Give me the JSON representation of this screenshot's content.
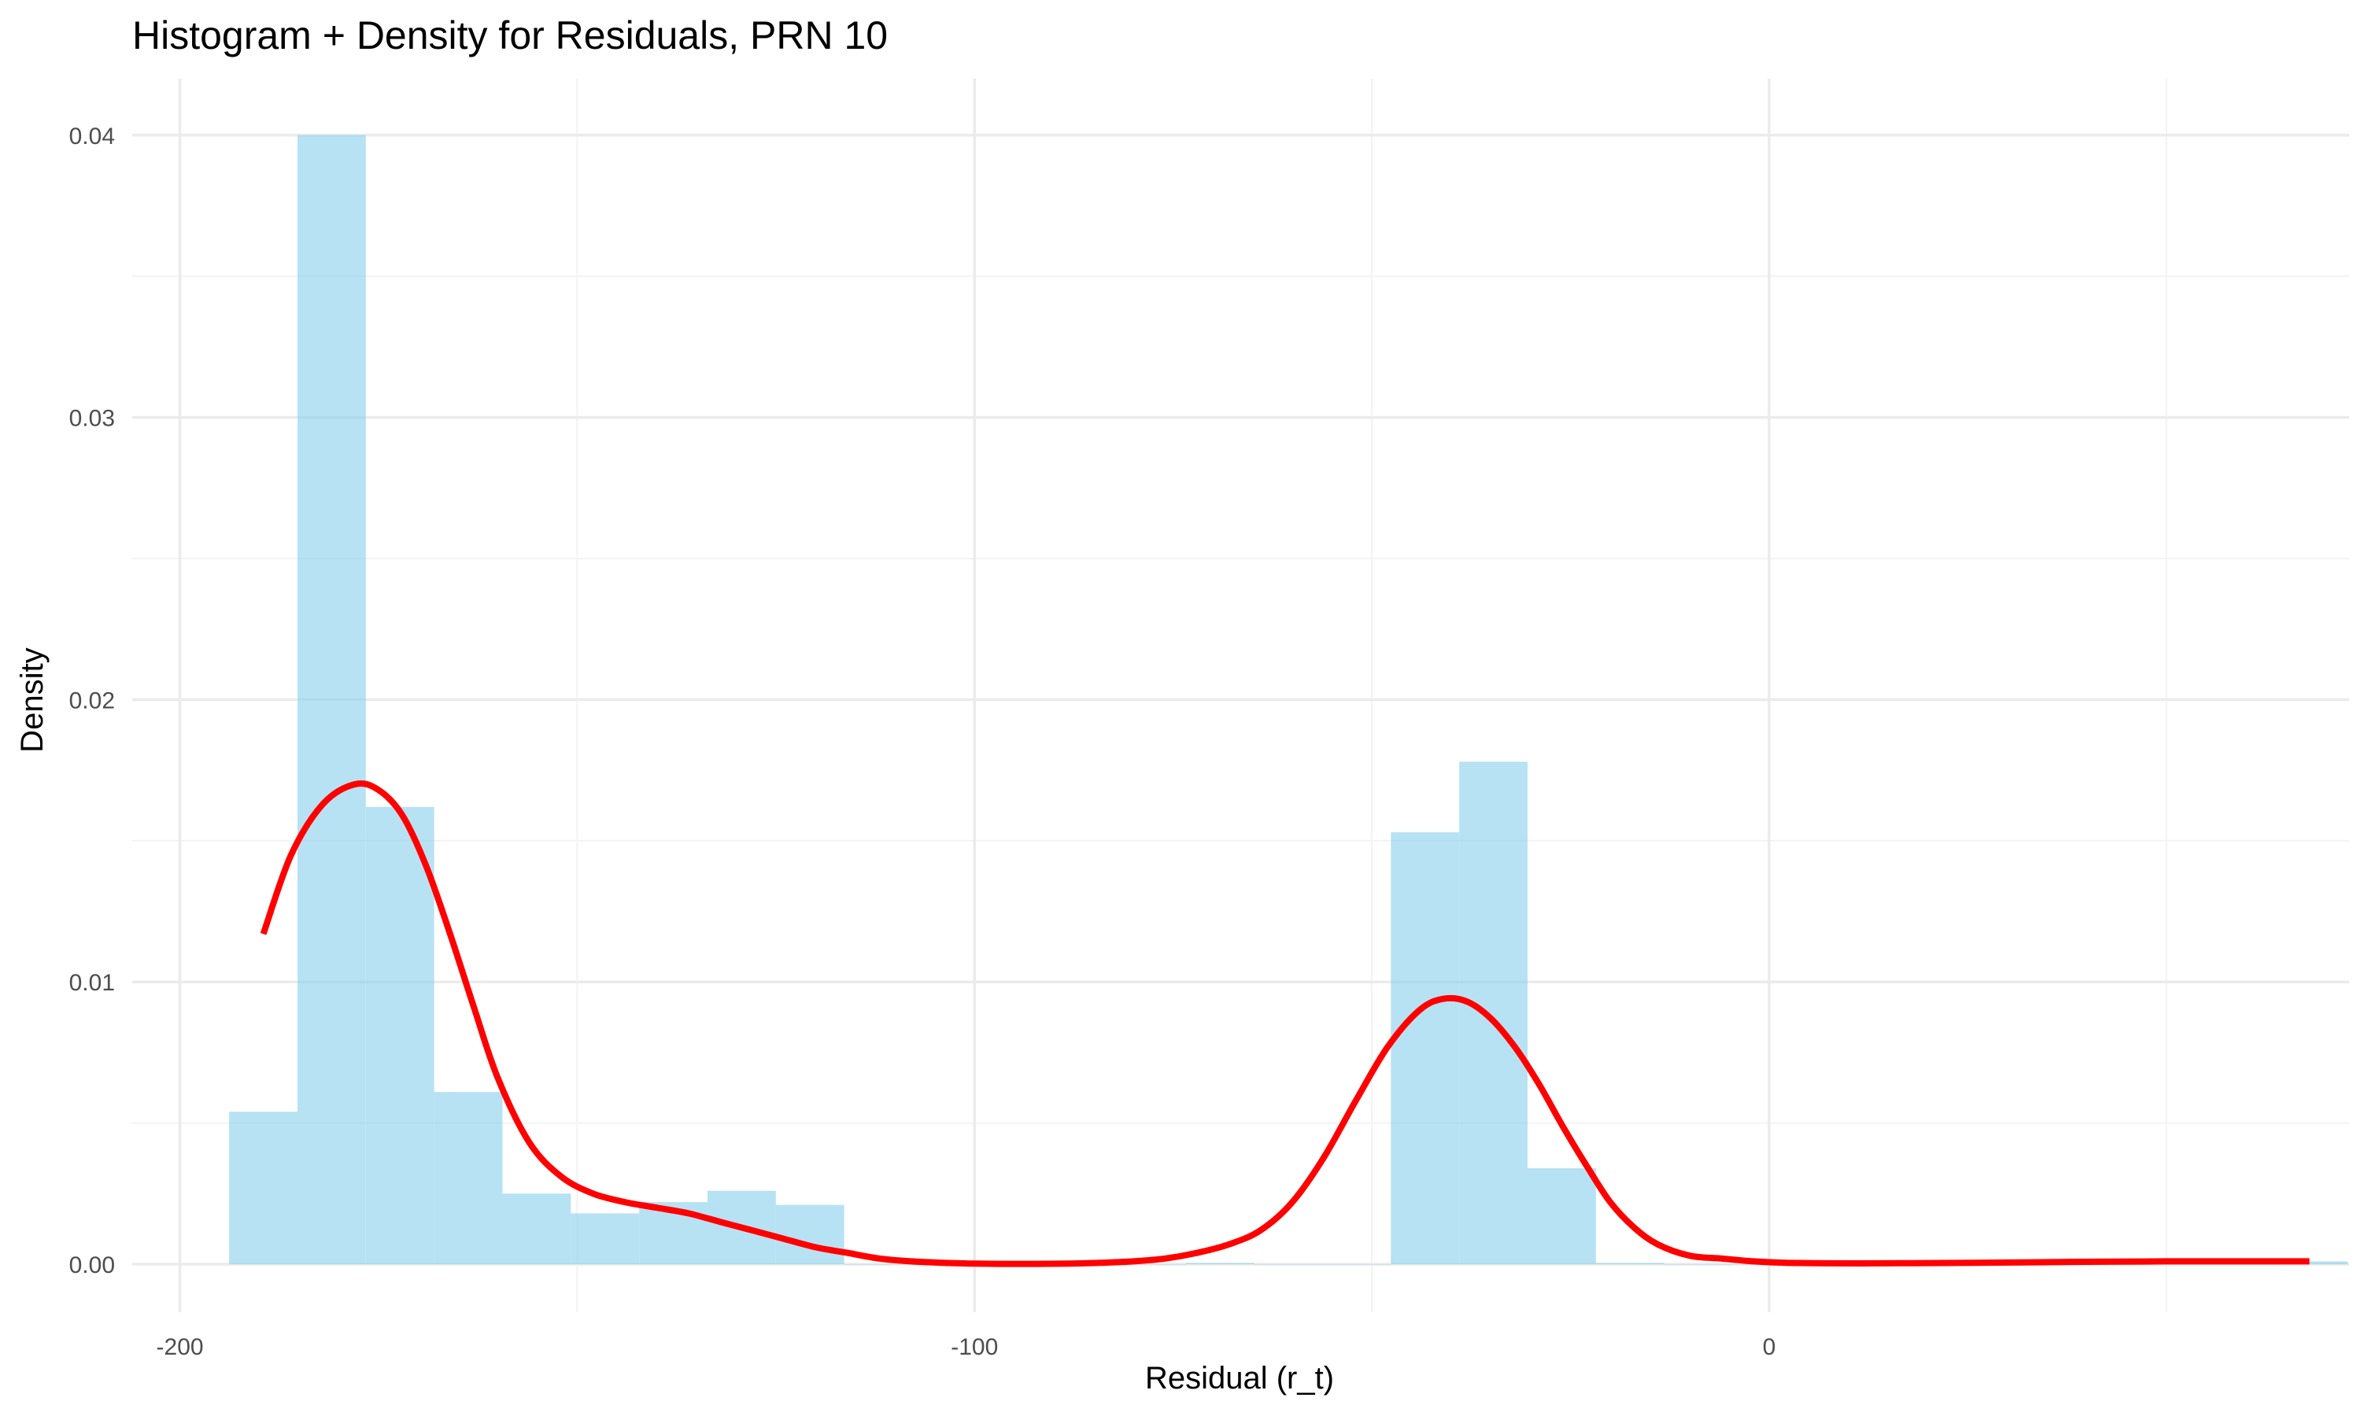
{
  "chart_data": {
    "type": "histogram",
    "title": "Histogram + Density for Residuals, PRN 10",
    "xlabel": "Residual (r_t)",
    "ylabel": "Density",
    "xlim": [
      -206,
      73
    ],
    "ylim": [
      -0.0017,
      0.042
    ],
    "x_ticks": [
      -200,
      -100,
      0
    ],
    "x_tick_labels": [
      "-200",
      "-100",
      "0"
    ],
    "x_minor_ticks": [
      -150,
      -50,
      50
    ],
    "y_ticks": [
      0,
      0.01,
      0.02,
      0.03,
      0.04
    ],
    "y_tick_labels": [
      "0.00",
      "0.01",
      "0.02",
      "0.03",
      "0.04"
    ],
    "y_minor_ticks": [
      0.005,
      0.015,
      0.025,
      0.035
    ],
    "grid": true,
    "bin_width": 8.6,
    "bins": [
      {
        "x0": -193.8,
        "x1": -185.2,
        "density": 0.0054
      },
      {
        "x0": -185.2,
        "x1": -176.6,
        "density": 0.04
      },
      {
        "x0": -176.6,
        "x1": -168.0,
        "density": 0.0162
      },
      {
        "x0": -168.0,
        "x1": -159.4,
        "density": 0.0061
      },
      {
        "x0": -159.4,
        "x1": -150.8,
        "density": 0.0025
      },
      {
        "x0": -150.8,
        "x1": -142.2,
        "density": 0.0018
      },
      {
        "x0": -142.2,
        "x1": -133.6,
        "density": 0.0022
      },
      {
        "x0": -133.6,
        "x1": -125.0,
        "density": 0.0026
      },
      {
        "x0": -125.0,
        "x1": -116.4,
        "density": 0.0021
      },
      {
        "x0": -116.4,
        "x1": -107.8,
        "density": 0.0
      },
      {
        "x0": -107.8,
        "x1": -99.2,
        "density": 0.0
      },
      {
        "x0": -99.2,
        "x1": -90.6,
        "density": 0.0
      },
      {
        "x0": -90.6,
        "x1": -82.0,
        "density": 0.0
      },
      {
        "x0": -82.0,
        "x1": -73.4,
        "density": 0.0
      },
      {
        "x0": -73.4,
        "x1": -64.8,
        "density": 4e-05
      },
      {
        "x0": -64.8,
        "x1": -56.2,
        "density": 0.0
      },
      {
        "x0": -56.2,
        "x1": -47.6,
        "density": 0.0
      },
      {
        "x0": -47.6,
        "x1": -39.0,
        "density": 0.0153
      },
      {
        "x0": -39.0,
        "x1": -30.4,
        "density": 0.0178
      },
      {
        "x0": -30.4,
        "x1": -21.8,
        "density": 0.0034
      },
      {
        "x0": -21.8,
        "x1": -13.2,
        "density": 4e-05
      },
      {
        "x0": -13.2,
        "x1": -4.6,
        "density": 0.0
      },
      {
        "x0": -4.6,
        "x1": 4.0,
        "density": 0.0
      },
      {
        "x0": 4.0,
        "x1": 12.6,
        "density": 0.0
      },
      {
        "x0": 12.6,
        "x1": 21.2,
        "density": 0.0
      },
      {
        "x0": 21.2,
        "x1": 29.8,
        "density": 0.0
      },
      {
        "x0": 29.8,
        "x1": 38.4,
        "density": 0.0
      },
      {
        "x0": 38.4,
        "x1": 47.0,
        "density": 0.0
      },
      {
        "x0": 47.0,
        "x1": 55.6,
        "density": 0.0
      },
      {
        "x0": 55.6,
        "x1": 64.2,
        "density": 0.0
      },
      {
        "x0": 64.2,
        "x1": 72.8,
        "density": 0.0001
      }
    ],
    "density_curve": {
      "x": [
        -189.5,
        -186,
        -182,
        -178,
        -175,
        -172,
        -169,
        -166,
        -163,
        -160,
        -156,
        -152,
        -148,
        -144,
        -140,
        -136,
        -132,
        -128,
        -124,
        -120,
        -116,
        -112,
        -108,
        -104,
        -100,
        -96,
        -92,
        -88,
        -84,
        -80,
        -76,
        -72,
        -68,
        -64,
        -60,
        -56,
        -52,
        -48,
        -44,
        -41,
        -38,
        -35,
        -32,
        -29,
        -26,
        -23,
        -20,
        -17,
        -14,
        -10,
        -6,
        -2,
        2,
        8,
        14,
        20,
        26,
        32,
        38,
        44,
        50,
        56,
        62,
        68
      ],
      "y": [
        0.0117,
        0.0145,
        0.0163,
        0.017,
        0.0168,
        0.0159,
        0.0141,
        0.0117,
        0.0091,
        0.0066,
        0.0043,
        0.0031,
        0.0025,
        0.0022,
        0.002,
        0.0018,
        0.0015,
        0.0012,
        0.0009,
        0.0006,
        0.0004,
        0.0002,
        0.0001,
        5e-05,
        2e-05,
        1e-05,
        1e-05,
        2e-05,
        5e-05,
        0.0001,
        0.0002,
        0.0004,
        0.0007,
        0.0012,
        0.0022,
        0.0038,
        0.0058,
        0.0077,
        0.009,
        0.0094,
        0.0093,
        0.0087,
        0.0077,
        0.0064,
        0.0049,
        0.0035,
        0.0022,
        0.0013,
        0.0007,
        0.0003,
        0.0002,
        0.0001,
        5e-05,
        3e-05,
        3e-05,
        4e-05,
        5e-05,
        6e-05,
        8e-05,
        9e-05,
        0.0001,
        0.0001,
        0.0001,
        0.0001
      ]
    },
    "colors": {
      "bars": "#87ceeb",
      "curve": "#ff0000",
      "grid_major": "#ebebeb",
      "grid_minor": "#f3f3f3",
      "text": "#000000",
      "tick_text": "#4d4d4d"
    }
  }
}
